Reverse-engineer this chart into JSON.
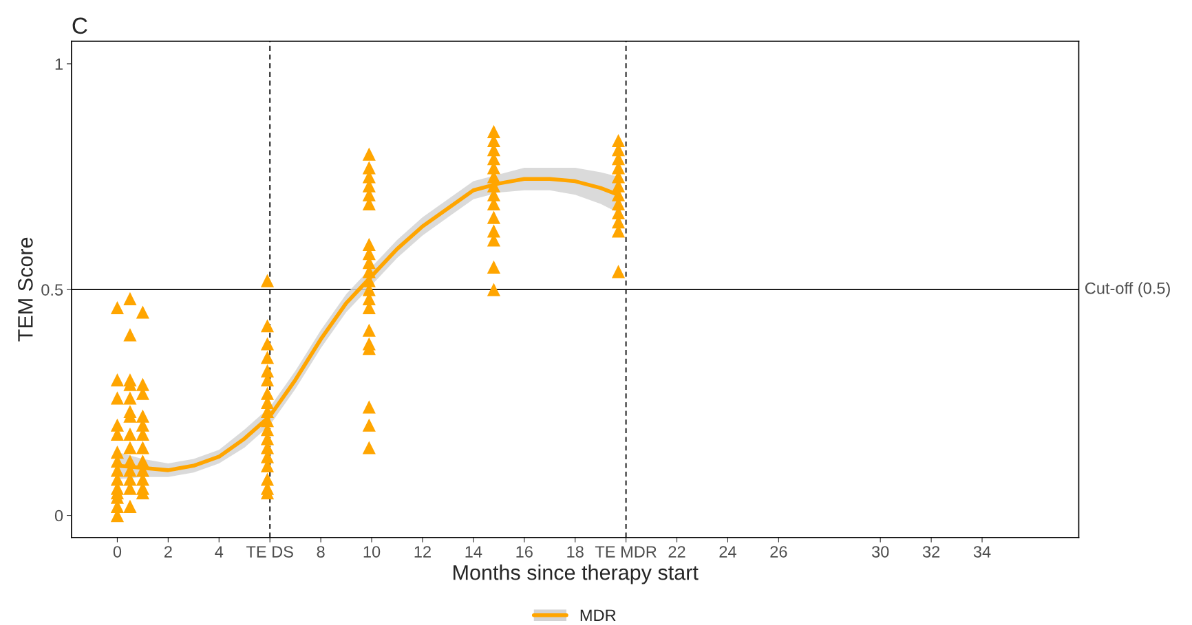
{
  "chart_data": {
    "type": "scatter",
    "title": "C",
    "xlabel": "Months since therapy start",
    "ylabel": "TEM Score",
    "xlim": [
      -1.8,
      37.8
    ],
    "ylim": [
      -0.049,
      1.05
    ],
    "xticks": [
      0,
      2,
      4,
      {
        "value": 6,
        "label": "TE DS"
      },
      8,
      10,
      12,
      14,
      16,
      18,
      {
        "value": 20,
        "label": "TE MDR"
      },
      22,
      24,
      26,
      30,
      32,
      34
    ],
    "yticks": [
      0,
      0.5,
      1
    ],
    "grid": false,
    "legend": "bottom",
    "marker": "triangle",
    "ref_lines": [
      {
        "axis": "y",
        "value": 0.5,
        "label": "Cut-off (0.5)",
        "color": "#000000",
        "line_style": "solid"
      },
      {
        "axis": "x",
        "value": 6,
        "color": "#000000",
        "line_style": "dashed"
      },
      {
        "axis": "x",
        "value": 20,
        "color": "#000000",
        "line_style": "dashed"
      }
    ],
    "series": [
      {
        "color": "#ffa500",
        "x": [
          0,
          0,
          0,
          0,
          0,
          0,
          0,
          0,
          0,
          0,
          0,
          0,
          0,
          0,
          0.5,
          0.5,
          0.5,
          0.5,
          0.5,
          0.5,
          0.5,
          0.5,
          0.5,
          0.5,
          0.5,
          0.5,
          0.5,
          0.5,
          1,
          1,
          1,
          1,
          1,
          1,
          1,
          1,
          1,
          1,
          1,
          1,
          5.9,
          5.9,
          5.9,
          5.9,
          5.9,
          5.9,
          5.9,
          5.9,
          5.9,
          5.9,
          5.9,
          5.9,
          5.9,
          5.9,
          5.9,
          5.9,
          5.9,
          5.9,
          9.9,
          9.9,
          9.9,
          9.9,
          9.9,
          9.9,
          9.9,
          9.9,
          9.9,
          9.9,
          9.9,
          9.9,
          9.9,
          9.9,
          9.9,
          9.9,
          9.9,
          9.9,
          9.9,
          9.9,
          14.8,
          14.8,
          14.8,
          14.8,
          14.8,
          14.8,
          14.8,
          14.8,
          14.8,
          14.8,
          14.8,
          14.8,
          14.8,
          14.8,
          19.7,
          19.7,
          19.7,
          19.7,
          19.7,
          19.7,
          19.7,
          19.7,
          19.7,
          19.7,
          19.7,
          19.7
        ],
        "values": [
          0.46,
          0.3,
          0.26,
          0.2,
          0.18,
          0.14,
          0.12,
          0.1,
          0.08,
          0.06,
          0.05,
          0.04,
          0.02,
          0.0,
          0.48,
          0.4,
          0.3,
          0.29,
          0.26,
          0.23,
          0.22,
          0.18,
          0.15,
          0.12,
          0.1,
          0.08,
          0.06,
          0.02,
          0.45,
          0.29,
          0.27,
          0.22,
          0.2,
          0.18,
          0.15,
          0.12,
          0.1,
          0.08,
          0.06,
          0.05,
          0.52,
          0.42,
          0.38,
          0.35,
          0.32,
          0.3,
          0.27,
          0.25,
          0.23,
          0.21,
          0.19,
          0.17,
          0.15,
          0.13,
          0.11,
          0.08,
          0.06,
          0.05,
          0.8,
          0.77,
          0.75,
          0.73,
          0.71,
          0.69,
          0.6,
          0.58,
          0.56,
          0.54,
          0.52,
          0.5,
          0.48,
          0.46,
          0.41,
          0.38,
          0.37,
          0.24,
          0.2,
          0.15,
          0.85,
          0.83,
          0.81,
          0.79,
          0.77,
          0.75,
          0.73,
          0.71,
          0.69,
          0.66,
          0.63,
          0.61,
          0.55,
          0.5,
          0.83,
          0.81,
          0.79,
          0.77,
          0.75,
          0.73,
          0.71,
          0.69,
          0.67,
          0.65,
          0.63,
          0.54
        ]
      },
      {
        "type": "line",
        "name": "MDR",
        "color": "#ffa500",
        "marker": "none",
        "line_style": "solid",
        "x": [
          0,
          1,
          2,
          3,
          4,
          5,
          6,
          7,
          8,
          9,
          10,
          11,
          12,
          13,
          14,
          15,
          16,
          17,
          18,
          19,
          19.7
        ],
        "values": [
          0.11,
          0.105,
          0.1,
          0.11,
          0.13,
          0.17,
          0.22,
          0.3,
          0.39,
          0.47,
          0.53,
          0.59,
          0.64,
          0.68,
          0.72,
          0.735,
          0.745,
          0.745,
          0.74,
          0.725,
          0.71
        ],
        "lower": [
          0.08,
          0.085,
          0.085,
          0.095,
          0.115,
          0.15,
          0.2,
          0.28,
          0.37,
          0.45,
          0.51,
          0.57,
          0.62,
          0.66,
          0.7,
          0.715,
          0.72,
          0.72,
          0.71,
          0.69,
          0.67
        ],
        "upper": [
          0.14,
          0.125,
          0.115,
          0.125,
          0.145,
          0.19,
          0.24,
          0.32,
          0.41,
          0.49,
          0.55,
          0.61,
          0.66,
          0.7,
          0.74,
          0.755,
          0.77,
          0.77,
          0.77,
          0.76,
          0.75
        ]
      }
    ]
  }
}
